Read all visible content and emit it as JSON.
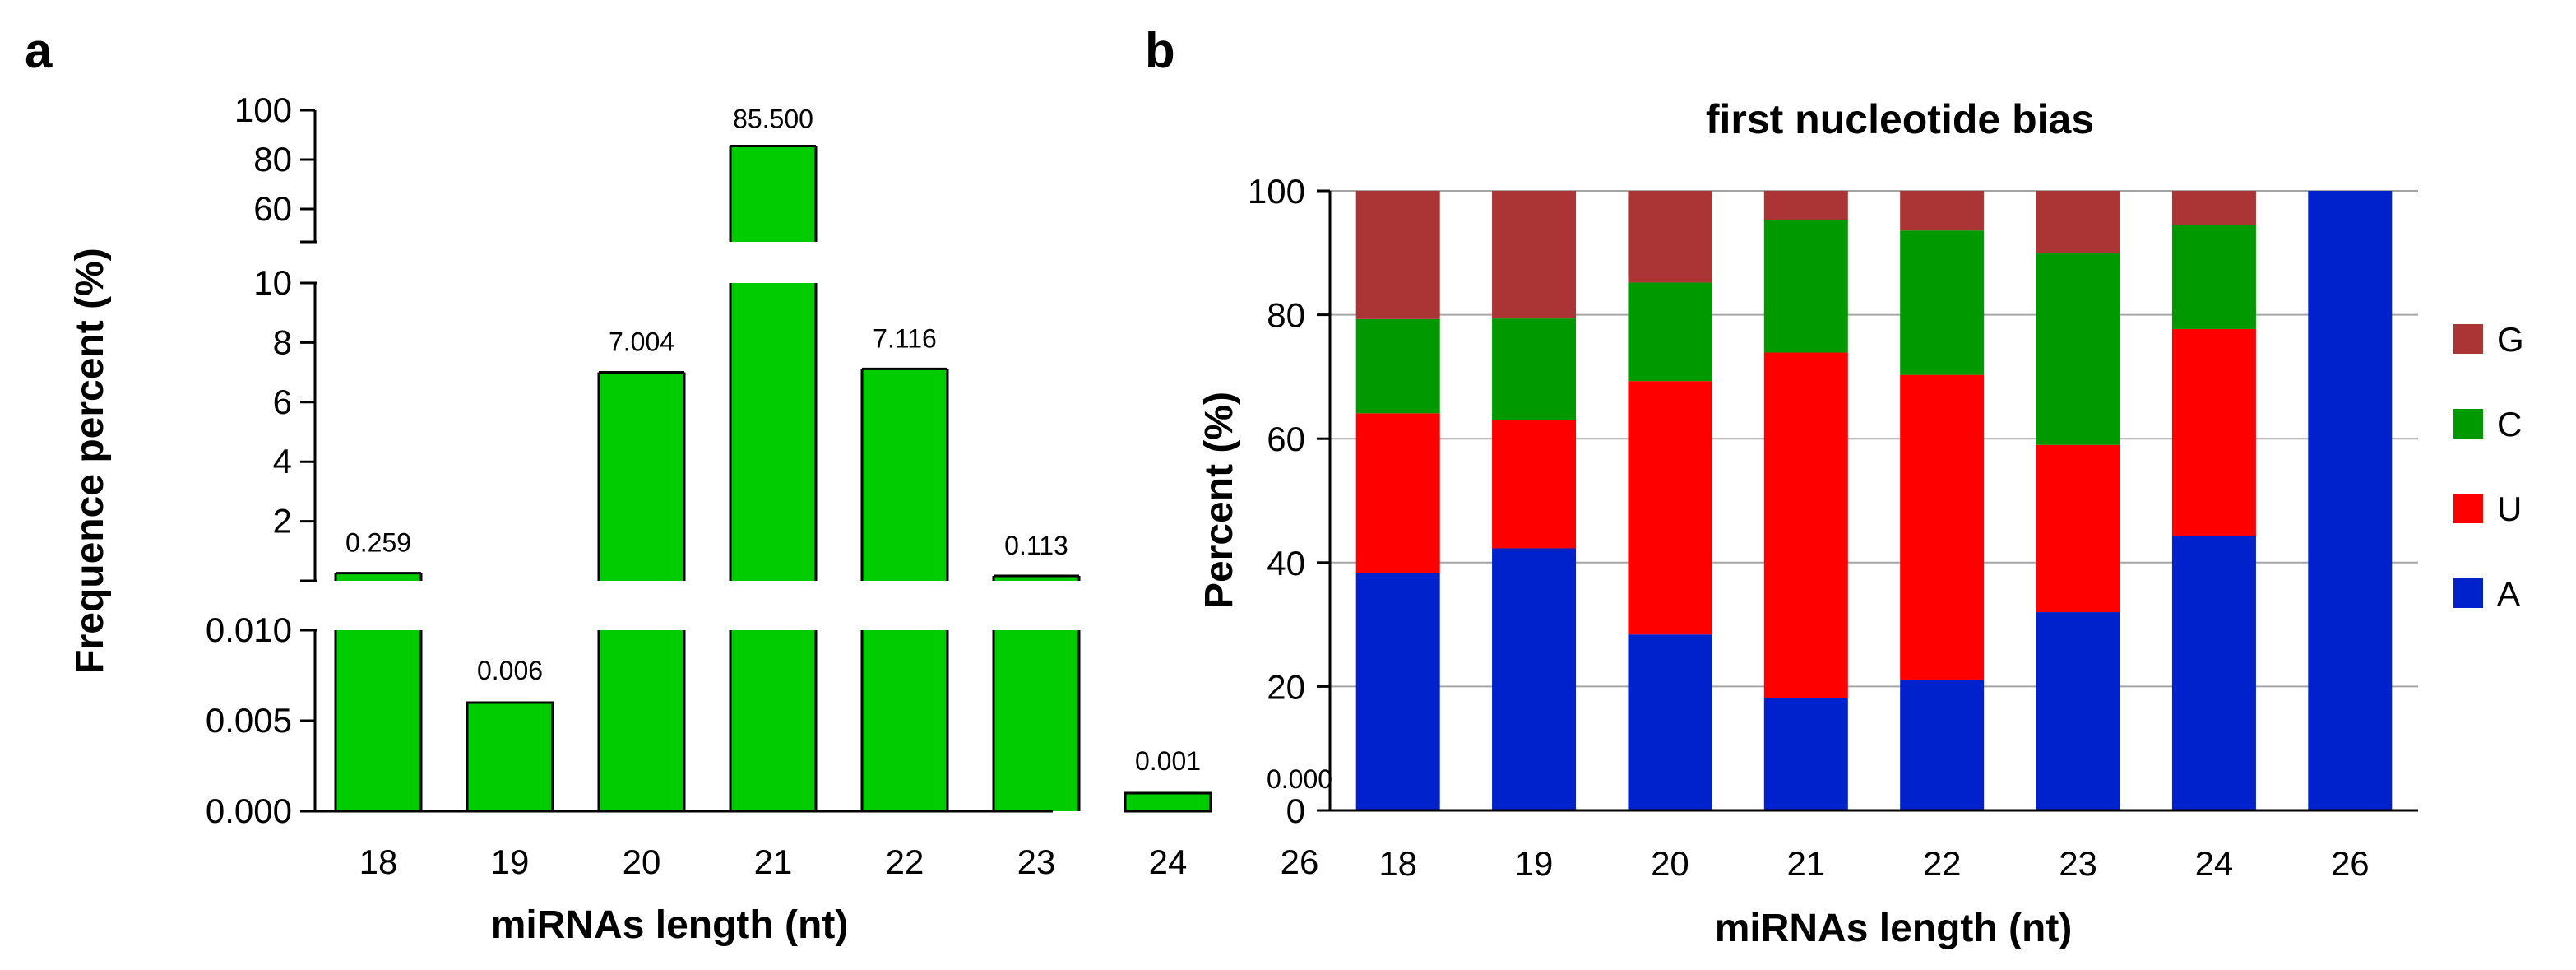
{
  "panels": {
    "a_letter": "a",
    "b_letter": "b"
  },
  "chart_data": [
    {
      "type": "bar",
      "title": "",
      "xlabel": "miRNAs length (nt)",
      "ylabel": "Frequence percent (%)",
      "categories": [
        "18",
        "19",
        "20",
        "21",
        "22",
        "23",
        "24",
        "26"
      ],
      "values": [
        0.259,
        0.006,
        7.004,
        85.5,
        7.116,
        0.113,
        0.001,
        0.0
      ],
      "data_labels": [
        "0.259",
        "0.006",
        "7.004",
        "85.500",
        "7.116",
        "0.113",
        "0.001",
        "0.000"
      ],
      "y_axis_breaks": [
        {
          "range": [
            0,
            0.01
          ],
          "ticks": [
            "0.000",
            "0.005",
            "0.010"
          ]
        },
        {
          "range": [
            0,
            10
          ],
          "ticks": [
            "2",
            "4",
            "6",
            "8",
            "10"
          ]
        },
        {
          "range": [
            60,
            100
          ],
          "ticks": [
            "60",
            "80",
            "100"
          ]
        }
      ],
      "bar_color": "#00cc00",
      "grid": false
    },
    {
      "type": "bar",
      "stacked": true,
      "title": "first nucleotide bias",
      "xlabel": "miRNAs length (nt)",
      "ylabel": "Percent (%)",
      "categories": [
        "18",
        "19",
        "20",
        "21",
        "22",
        "23",
        "24",
        "26"
      ],
      "ylim": [
        0,
        100
      ],
      "yticks": [
        "0",
        "20",
        "40",
        "60",
        "80",
        "100"
      ],
      "series": [
        {
          "name": "A",
          "color": "#0022cc",
          "values": [
            38.3,
            42.3,
            28.4,
            18.1,
            21.1,
            32.0,
            44.3,
            100
          ]
        },
        {
          "name": "U",
          "color": "#ff0000",
          "values": [
            25.8,
            20.7,
            40.9,
            55.8,
            49.2,
            27.0,
            33.4,
            0
          ]
        },
        {
          "name": "C",
          "color": "#009900",
          "values": [
            15.2,
            16.4,
            15.9,
            21.4,
            23.3,
            30.9,
            16.8,
            0
          ]
        },
        {
          "name": "G",
          "color": "#ab3434",
          "values": [
            20.7,
            20.6,
            14.8,
            4.7,
            6.4,
            10.1,
            5.5,
            0
          ]
        }
      ],
      "legend_order": [
        "G",
        "C",
        "U",
        "A"
      ],
      "legend_position": "right",
      "grid": true
    }
  ]
}
